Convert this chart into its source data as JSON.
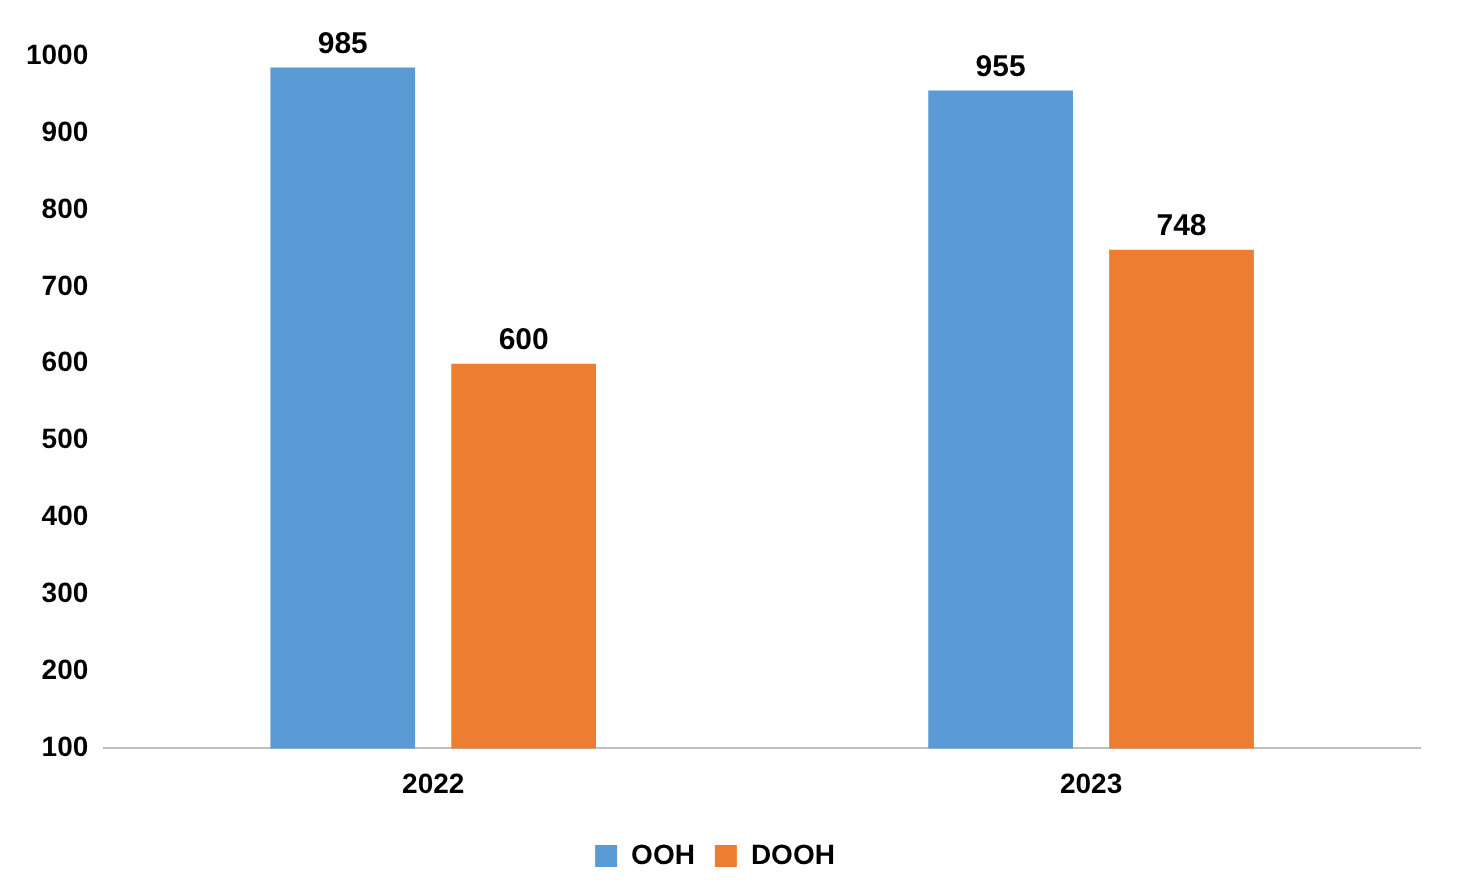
{
  "chart_data": {
    "type": "bar",
    "categories": [
      "2022",
      "2023"
    ],
    "series": [
      {
        "name": "OOH",
        "color": "#5b9bd5",
        "values": [
          985,
          955
        ]
      },
      {
        "name": "DOOH",
        "color": "#ed7d31",
        "values": [
          600,
          748
        ]
      }
    ],
    "ylim": [
      100,
      1000
    ],
    "yticks": [
      100,
      200,
      300,
      400,
      500,
      600,
      700,
      800,
      900,
      1000
    ],
    "grid": false,
    "legend": "bottom",
    "data_labels": true
  }
}
